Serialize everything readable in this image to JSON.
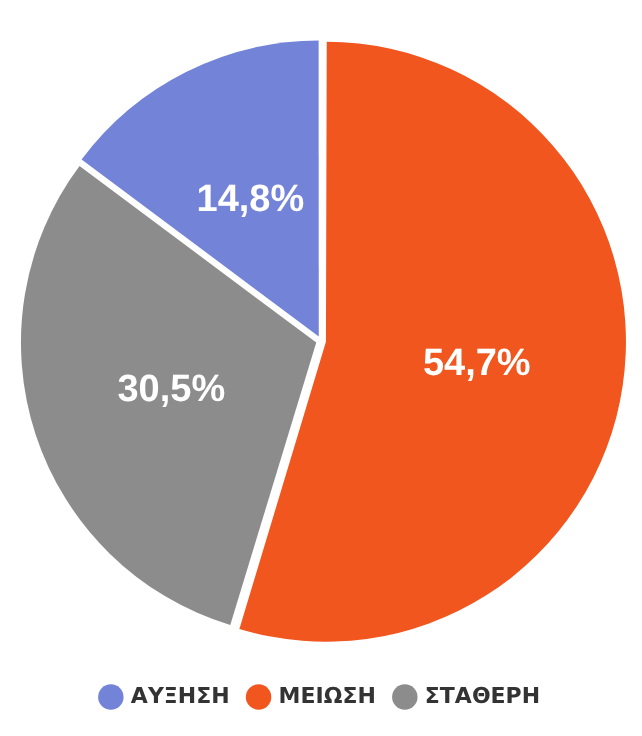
{
  "chart_data": {
    "type": "pie",
    "categories": [
      "ΑΥΞΗΣΗ",
      "ΜΕΙΩΣΗ",
      "ΣΤΑΘΕΡΗ"
    ],
    "values": [
      14.8,
      54.7,
      30.5
    ],
    "colors": [
      "#7283d8",
      "#f0561e",
      "#8c8c8c"
    ],
    "value_labels": [
      "14,8%",
      "54,7%",
      "30,5%"
    ],
    "legend": "bottom"
  }
}
